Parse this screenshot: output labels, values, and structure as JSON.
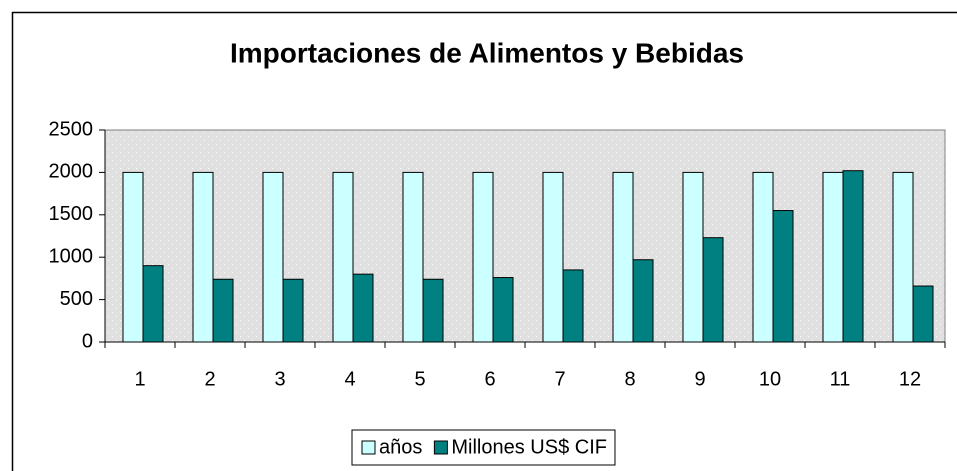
{
  "chart_data": {
    "type": "bar",
    "title": "Importaciones de Alimentos y Bebidas",
    "categories": [
      "1",
      "2",
      "3",
      "4",
      "5",
      "6",
      "7",
      "8",
      "9",
      "10",
      "11",
      "12"
    ],
    "series": [
      {
        "name": "años",
        "color": "#ccffff",
        "values": [
          2000,
          2000,
          2000,
          2000,
          2000,
          2000,
          2000,
          2000,
          2000,
          2000,
          2000,
          2000
        ]
      },
      {
        "name": "Millones US$ CIF",
        "color": "#008080",
        "values": [
          900,
          740,
          740,
          800,
          740,
          760,
          850,
          970,
          1230,
          1550,
          2020,
          660
        ]
      }
    ],
    "ylim": [
      0,
      2500
    ],
    "yticks": [
      0,
      500,
      1000,
      1500,
      2000,
      2500
    ],
    "legend": "bottom"
  }
}
